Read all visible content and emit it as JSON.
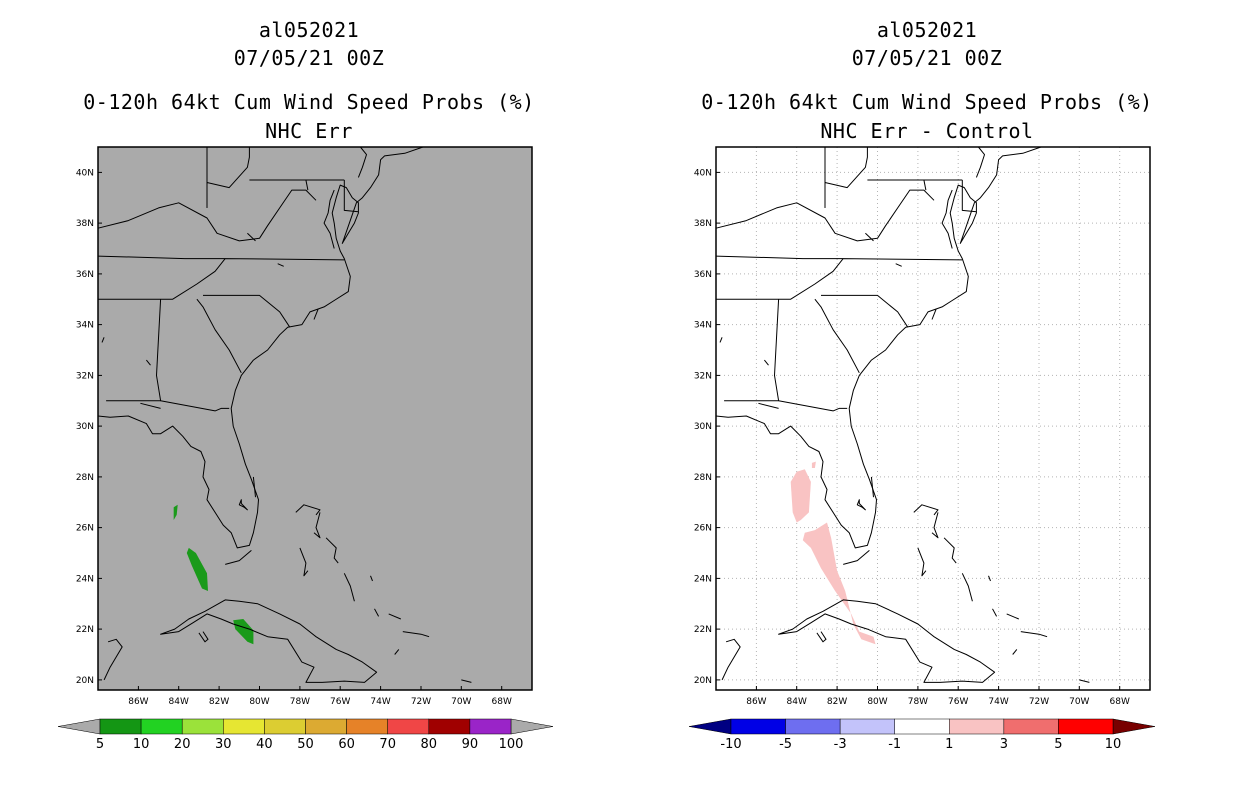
{
  "colors": {
    "land_gray": "#aaaaaa",
    "frame": "#000000",
    "grid": "#b4b4b4"
  },
  "lat_labels": [
    "40N",
    "38N",
    "36N",
    "34N",
    "32N",
    "30N",
    "28N",
    "26N",
    "24N",
    "22N",
    "20N"
  ],
  "lon_labels": [
    "86W",
    "84W",
    "82W",
    "80W",
    "78W",
    "76W",
    "74W",
    "72W",
    "70W",
    "68W"
  ],
  "left": {
    "storm_id": "al052021",
    "datetime": "07/05/21 00Z",
    "product": "0-120h 64kt Cum Wind Speed Probs (%)",
    "subtitle": "NHC Err",
    "background_color": "#aaaaaa",
    "prob_color": "#1a9a1a",
    "colorbar": {
      "under_color": "#aaaaaa",
      "over_color": "#aaaaaa",
      "colors": [
        "#149614",
        "#22d222",
        "#9be23a",
        "#e6e632",
        "#dccd32",
        "#dcaa32",
        "#e68228",
        "#f04646",
        "#a00000",
        "#9a24c8"
      ],
      "labels": [
        "5",
        "10",
        "20",
        "30",
        "40",
        "50",
        "60",
        "70",
        "80",
        "90",
        "100"
      ]
    }
  },
  "right": {
    "storm_id": "al052021",
    "datetime": "07/05/21 00Z",
    "product": "0-120h 64kt Cum Wind Speed Probs (%)",
    "subtitle": "NHC Err - Control",
    "background_color": "#ffffff",
    "diff_color": "#f9c3c3",
    "colorbar": {
      "under_color": "#000082",
      "over_color": "#780000",
      "colors": [
        "#0000e6",
        "#6e6ef0",
        "#c3c3fa",
        "#ffffff",
        "#f9c3c3",
        "#f06e6e",
        "#ff0000"
      ],
      "labels": [
        "-10",
        "-5",
        "-3",
        "-1",
        "1",
        "3",
        "5",
        "10"
      ]
    }
  }
}
